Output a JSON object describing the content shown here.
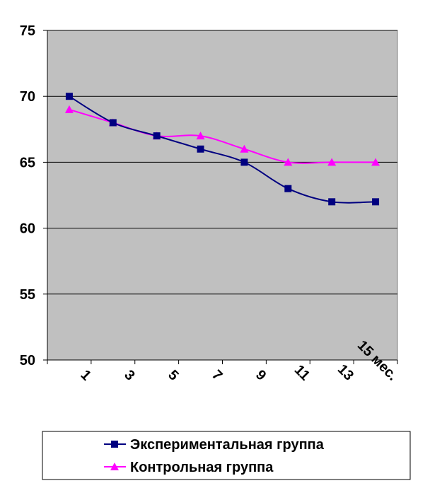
{
  "chart_data": {
    "type": "line",
    "categories": [
      "1",
      "3",
      "5",
      "7",
      "9",
      "11",
      "13",
      "15 мес."
    ],
    "series": [
      {
        "name": "Экспериментальная группа",
        "values": [
          70,
          68,
          67,
          66,
          65,
          63,
          62,
          62
        ],
        "color": "#000080",
        "marker": "square"
      },
      {
        "name": "Контрольная группа",
        "values": [
          69,
          68,
          67,
          67,
          66,
          65,
          65,
          65
        ],
        "color": "#ff00ff",
        "marker": "triangle"
      }
    ],
    "yticks": [
      "50",
      "55",
      "60",
      "65",
      "70",
      "75"
    ],
    "ylim": [
      50,
      75
    ],
    "grid": true,
    "plot_background": "#c0c0c0",
    "legend": "bottom",
    "xlabel": "",
    "ylabel": "",
    "title": ""
  }
}
